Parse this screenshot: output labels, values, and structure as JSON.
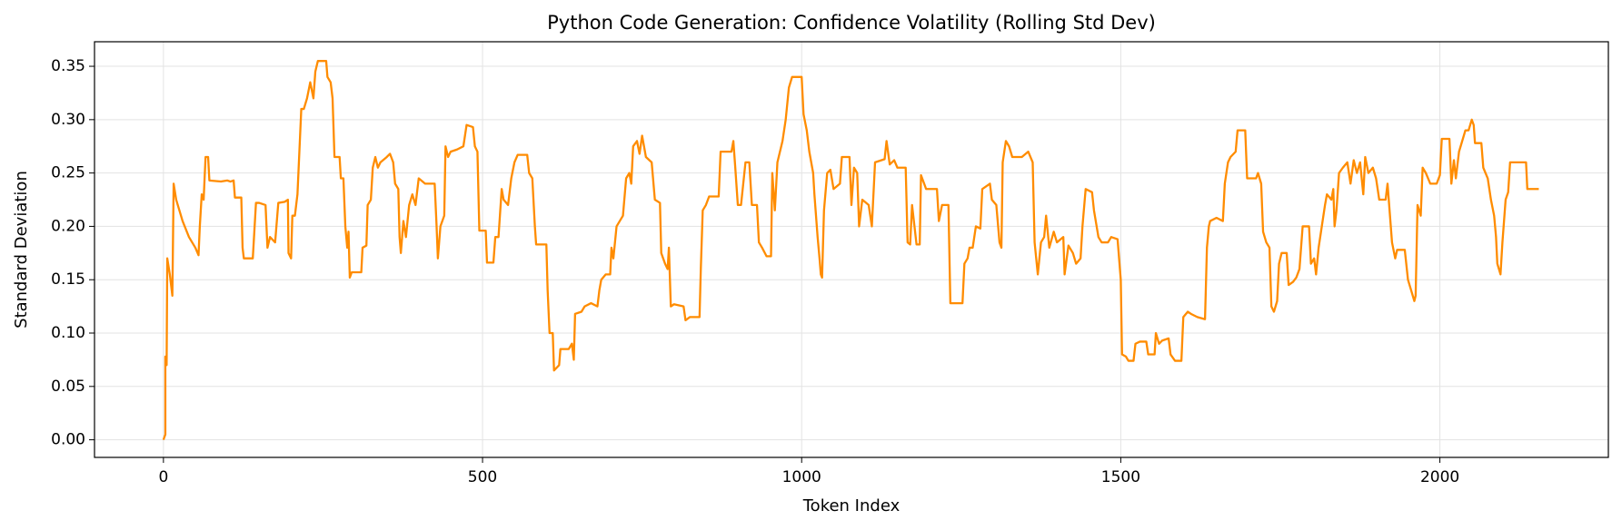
{
  "chart_data": {
    "type": "line",
    "title": "Python Code Generation: Confidence Volatility (Rolling Std Dev)",
    "xlabel": "Token Index",
    "ylabel": "Standard Deviation",
    "xlim": [
      -108,
      2264
    ],
    "ylim": [
      -0.0165,
      0.373
    ],
    "xticks": [
      0,
      500,
      1000,
      1500,
      2000
    ],
    "yticks": [
      {
        "value": 0,
        "label": "0.00"
      },
      {
        "value": 0.05,
        "label": "0.05"
      },
      {
        "value": 0.1,
        "label": "0.10"
      },
      {
        "value": 0.15,
        "label": "0.15"
      },
      {
        "value": 0.2,
        "label": "0.20"
      },
      {
        "value": 0.25,
        "label": "0.25"
      },
      {
        "value": 0.3,
        "label": "0.30"
      },
      {
        "value": 0.35,
        "label": "0.35"
      }
    ],
    "grid": true,
    "color": "#ff8c00",
    "x": [
      0,
      3,
      3,
      5,
      6,
      10,
      14,
      16,
      20,
      30,
      40,
      50,
      55,
      57,
      60,
      63,
      66,
      70,
      72,
      90,
      100,
      105,
      110,
      112,
      122,
      124,
      126,
      140,
      145,
      150,
      160,
      163,
      167,
      175,
      180,
      190,
      195,
      196,
      200,
      202,
      206,
      210,
      213,
      216,
      220,
      225,
      230,
      235,
      238,
      242,
      255,
      257,
      262,
      265,
      268,
      276,
      278,
      282,
      285,
      288,
      290,
      292,
      295,
      310,
      312,
      318,
      320,
      325,
      328,
      332,
      336,
      340,
      346,
      350,
      355,
      360,
      363,
      368,
      370,
      372,
      376,
      380,
      385,
      390,
      395,
      400,
      410,
      420,
      425,
      428,
      430,
      434,
      440,
      442,
      446,
      450,
      460,
      470,
      475,
      485,
      488,
      492,
      495,
      505,
      507,
      517,
      520,
      525,
      530,
      533,
      540,
      545,
      550,
      555,
      570,
      573,
      578,
      582,
      584,
      600,
      602,
      605,
      610,
      612,
      620,
      622,
      635,
      640,
      643,
      645,
      655,
      660,
      670,
      680,
      683,
      686,
      693,
      700,
      702,
      705,
      710,
      715,
      720,
      725,
      730,
      733,
      736,
      742,
      746,
      750,
      756,
      765,
      770,
      778,
      780,
      786,
      790,
      792,
      795,
      800,
      815,
      818,
      825,
      840,
      842,
      845,
      850,
      855,
      870,
      873,
      890,
      893,
      896,
      900,
      905,
      912,
      918,
      922,
      930,
      933,
      938,
      945,
      952,
      954,
      958,
      962,
      970,
      975,
      980,
      985,
      1000,
      1003,
      1008,
      1012,
      1018,
      1020,
      1025,
      1028,
      1030,
      1032,
      1035,
      1040,
      1045,
      1050,
      1060,
      1063,
      1075,
      1078,
      1082,
      1087,
      1090,
      1095,
      1105,
      1110,
      1115,
      1130,
      1133,
      1138,
      1145,
      1150,
      1163,
      1166,
      1170,
      1173,
      1180,
      1185,
      1187,
      1195,
      1212,
      1215,
      1220,
      1230,
      1233,
      1252,
      1255,
      1260,
      1263,
      1268,
      1273,
      1280,
      1283,
      1295,
      1298,
      1305,
      1310,
      1313,
      1315,
      1320,
      1325,
      1330,
      1345,
      1355,
      1362,
      1365,
      1370,
      1375,
      1380,
      1383,
      1388,
      1395,
      1400,
      1410,
      1412,
      1418,
      1425,
      1430,
      1437,
      1440,
      1445,
      1455,
      1458,
      1465,
      1470,
      1480,
      1485,
      1495,
      1500,
      1502,
      1508,
      1512,
      1520,
      1523,
      1530,
      1540,
      1543,
      1553,
      1555,
      1560,
      1565,
      1575,
      1578,
      1585,
      1595,
      1598,
      1605,
      1610,
      1620,
      1632,
      1635,
      1638,
      1640,
      1650,
      1660,
      1663,
      1668,
      1672,
      1680,
      1683,
      1695,
      1698,
      1712,
      1715,
      1720,
      1723,
      1728,
      1733,
      1736,
      1740,
      1745,
      1748,
      1752,
      1760,
      1763,
      1770,
      1775,
      1780,
      1785,
      1795,
      1798,
      1803,
      1806,
      1810,
      1815,
      1820,
      1823,
      1830,
      1833,
      1835,
      1838,
      1842,
      1848,
      1855,
      1860,
      1865,
      1870,
      1875,
      1880,
      1883,
      1888,
      1895,
      1900,
      1905,
      1915,
      1918,
      1925,
      1930,
      1933,
      1945,
      1950,
      1955,
      1960,
      1962,
      1965,
      1970,
      1973,
      1978,
      1985,
      1990,
      1995,
      2000,
      2003,
      2015,
      2018,
      2022,
      2025,
      2030,
      2035,
      2040,
      2045,
      2050,
      2053,
      2055,
      2065,
      2068,
      2075,
      2080,
      2085,
      2088,
      2090,
      2095,
      2098,
      2103,
      2107,
      2110,
      2135,
      2137,
      2155
    ],
    "values": [
      0.0,
      0.005,
      0.078,
      0.07,
      0.17,
      0.155,
      0.135,
      0.24,
      0.225,
      0.205,
      0.19,
      0.18,
      0.173,
      0.2,
      0.23,
      0.225,
      0.265,
      0.265,
      0.243,
      0.242,
      0.243,
      0.242,
      0.243,
      0.227,
      0.227,
      0.18,
      0.17,
      0.17,
      0.222,
      0.222,
      0.22,
      0.18,
      0.19,
      0.185,
      0.222,
      0.223,
      0.225,
      0.175,
      0.17,
      0.21,
      0.21,
      0.23,
      0.27,
      0.31,
      0.31,
      0.32,
      0.335,
      0.32,
      0.345,
      0.355,
      0.355,
      0.34,
      0.335,
      0.32,
      0.265,
      0.265,
      0.245,
      0.245,
      0.2,
      0.18,
      0.195,
      0.152,
      0.157,
      0.157,
      0.18,
      0.182,
      0.22,
      0.225,
      0.255,
      0.265,
      0.255,
      0.26,
      0.263,
      0.265,
      0.268,
      0.26,
      0.24,
      0.235,
      0.19,
      0.175,
      0.205,
      0.19,
      0.22,
      0.23,
      0.22,
      0.245,
      0.24,
      0.24,
      0.24,
      0.2,
      0.17,
      0.2,
      0.21,
      0.275,
      0.265,
      0.27,
      0.272,
      0.275,
      0.295,
      0.293,
      0.275,
      0.27,
      0.196,
      0.196,
      0.166,
      0.166,
      0.19,
      0.19,
      0.235,
      0.225,
      0.22,
      0.245,
      0.26,
      0.267,
      0.267,
      0.25,
      0.245,
      0.2,
      0.183,
      0.183,
      0.14,
      0.1,
      0.1,
      0.065,
      0.07,
      0.085,
      0.085,
      0.09,
      0.075,
      0.118,
      0.12,
      0.125,
      0.128,
      0.125,
      0.14,
      0.15,
      0.155,
      0.155,
      0.18,
      0.17,
      0.2,
      0.205,
      0.21,
      0.245,
      0.25,
      0.24,
      0.275,
      0.28,
      0.268,
      0.285,
      0.265,
      0.26,
      0.225,
      0.222,
      0.175,
      0.165,
      0.16,
      0.18,
      0.125,
      0.127,
      0.125,
      0.112,
      0.115,
      0.115,
      0.16,
      0.215,
      0.22,
      0.228,
      0.228,
      0.27,
      0.27,
      0.28,
      0.255,
      0.22,
      0.22,
      0.26,
      0.26,
      0.22,
      0.22,
      0.185,
      0.18,
      0.172,
      0.172,
      0.25,
      0.215,
      0.26,
      0.28,
      0.3,
      0.33,
      0.34,
      0.34,
      0.305,
      0.29,
      0.27,
      0.25,
      0.23,
      0.19,
      0.17,
      0.155,
      0.152,
      0.215,
      0.25,
      0.253,
      0.235,
      0.24,
      0.265,
      0.265,
      0.22,
      0.255,
      0.25,
      0.2,
      0.225,
      0.22,
      0.2,
      0.26,
      0.263,
      0.28,
      0.258,
      0.262,
      0.255,
      0.255,
      0.185,
      0.183,
      0.22,
      0.183,
      0.183,
      0.248,
      0.235,
      0.235,
      0.205,
      0.22,
      0.22,
      0.128,
      0.128,
      0.165,
      0.17,
      0.18,
      0.18,
      0.2,
      0.198,
      0.235,
      0.24,
      0.225,
      0.22,
      0.185,
      0.18,
      0.26,
      0.28,
      0.275,
      0.265,
      0.265,
      0.27,
      0.26,
      0.185,
      0.155,
      0.185,
      0.19,
      0.21,
      0.18,
      0.195,
      0.185,
      0.19,
      0.155,
      0.182,
      0.175,
      0.165,
      0.17,
      0.2,
      0.235,
      0.232,
      0.215,
      0.19,
      0.185,
      0.185,
      0.19,
      0.188,
      0.15,
      0.08,
      0.078,
      0.074,
      0.074,
      0.09,
      0.092,
      0.092,
      0.08,
      0.08,
      0.1,
      0.09,
      0.093,
      0.095,
      0.08,
      0.074,
      0.074,
      0.115,
      0.12,
      0.118,
      0.115,
      0.113,
      0.18,
      0.2,
      0.205,
      0.208,
      0.205,
      0.24,
      0.26,
      0.265,
      0.27,
      0.29,
      0.29,
      0.245,
      0.245,
      0.25,
      0.24,
      0.195,
      0.185,
      0.18,
      0.125,
      0.12,
      0.13,
      0.165,
      0.175,
      0.175,
      0.145,
      0.148,
      0.152,
      0.16,
      0.2,
      0.2,
      0.165,
      0.17,
      0.155,
      0.18,
      0.2,
      0.22,
      0.23,
      0.225,
      0.235,
      0.2,
      0.215,
      0.25,
      0.255,
      0.26,
      0.24,
      0.262,
      0.25,
      0.26,
      0.23,
      0.265,
      0.25,
      0.255,
      0.245,
      0.225,
      0.225,
      0.24,
      0.185,
      0.17,
      0.178,
      0.178,
      0.15,
      0.14,
      0.13,
      0.135,
      0.22,
      0.21,
      0.255,
      0.25,
      0.24,
      0.24,
      0.24,
      0.248,
      0.282,
      0.282,
      0.24,
      0.262,
      0.245,
      0.27,
      0.28,
      0.29,
      0.29,
      0.3,
      0.295,
      0.278,
      0.278,
      0.255,
      0.245,
      0.225,
      0.21,
      0.19,
      0.165,
      0.155,
      0.185,
      0.225,
      0.232,
      0.26,
      0.26,
      0.235,
      0.235
    ]
  }
}
